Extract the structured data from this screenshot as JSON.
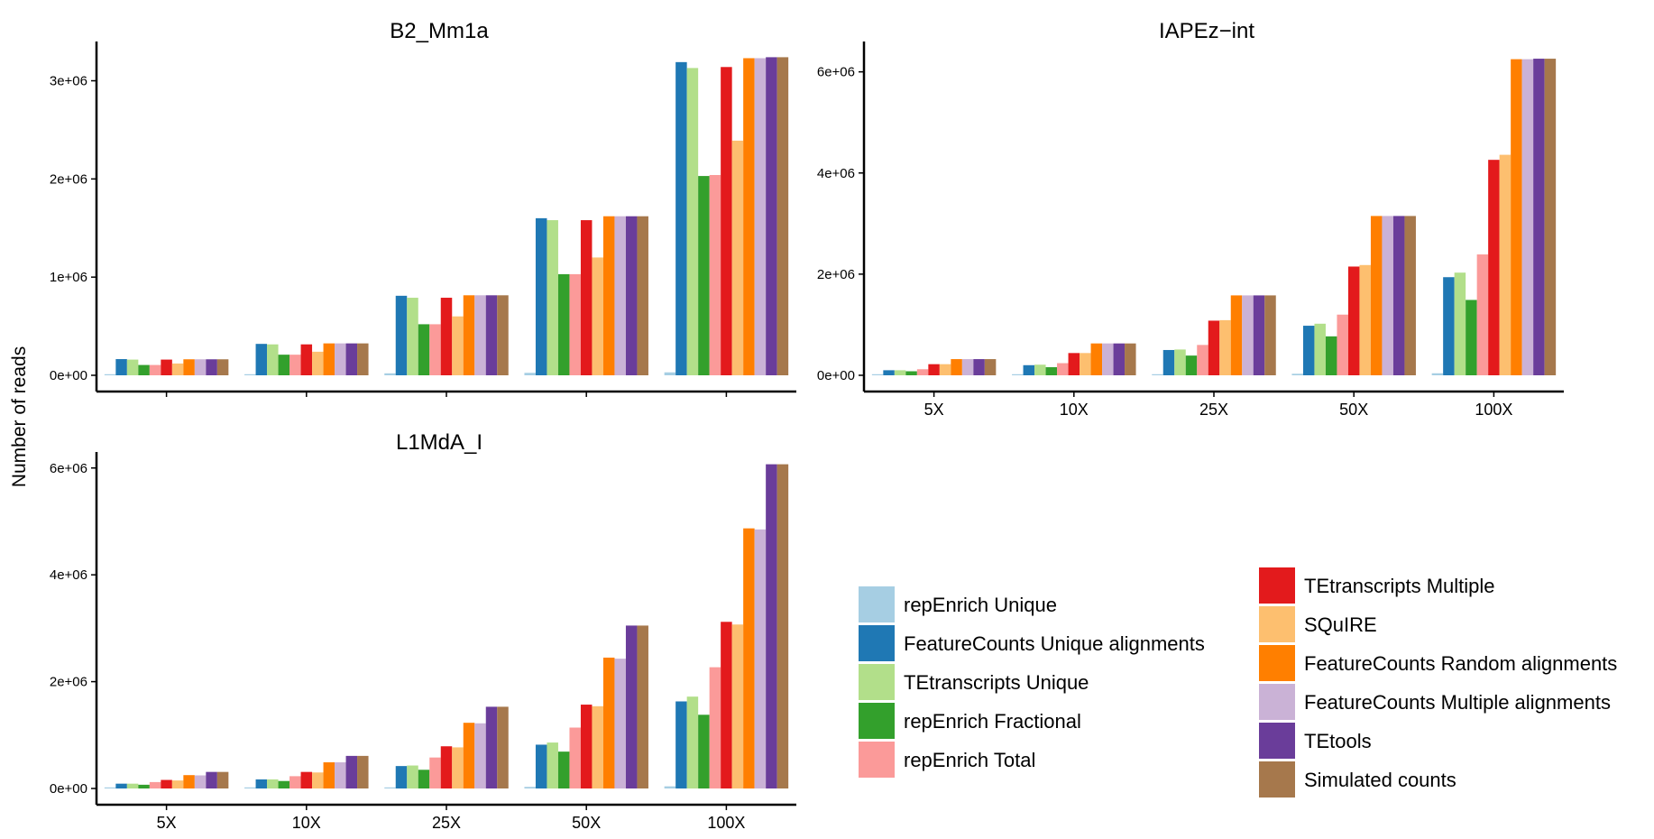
{
  "figure": {
    "ylabel": "Number of reads"
  },
  "series_colors": [
    "#a6cee3",
    "#1f78b4",
    "#b2df8a",
    "#33a02c",
    "#fb9a99",
    "#e31a1c",
    "#fdbf6f",
    "#ff7f00",
    "#cab2d6",
    "#6a3d9a",
    "#a6784c"
  ],
  "legend": {
    "column1": [
      "repEnrich Unique",
      "FeatureCounts Unique alignments",
      "TEtranscripts Unique",
      "repEnrich Fractional",
      "repEnrich Total"
    ],
    "column2": [
      "TEtranscripts Multiple",
      "SQuIRE",
      "FeatureCounts Random alignments",
      "FeatureCounts Multiple alignments",
      "TEtools",
      "Simulated counts"
    ]
  },
  "chart_data": [
    {
      "type": "bar",
      "title": "B2_Mm1a",
      "categories": [
        "5X",
        "10X",
        "25X",
        "50X",
        "100X"
      ],
      "show_category_labels": false,
      "ylim": [
        0,
        3400000
      ],
      "yticks": [
        0,
        1000000,
        2000000,
        3000000
      ],
      "ytick_labels": [
        "0e+00",
        "1e+06",
        "2e+06",
        "3e+06"
      ],
      "series": [
        {
          "name": "repEnrich Unique",
          "values": [
            5000,
            10000,
            20000,
            25000,
            30000
          ]
        },
        {
          "name": "FeatureCounts Unique alignments",
          "values": [
            165000,
            320000,
            810000,
            1600000,
            3190000
          ]
        },
        {
          "name": "TEtranscripts Unique",
          "values": [
            160000,
            315000,
            790000,
            1580000,
            3130000
          ]
        },
        {
          "name": "repEnrich Fractional",
          "values": [
            105000,
            210000,
            520000,
            1030000,
            2030000
          ]
        },
        {
          "name": "repEnrich Total",
          "values": [
            105000,
            210000,
            520000,
            1030000,
            2040000
          ]
        },
        {
          "name": "TEtranscripts Multiple",
          "values": [
            160000,
            315000,
            790000,
            1580000,
            3140000
          ]
        },
        {
          "name": "SQuIRE",
          "values": [
            120000,
            240000,
            600000,
            1200000,
            2390000
          ]
        },
        {
          "name": "FeatureCounts Random alignments",
          "values": [
            163000,
            325000,
            815000,
            1620000,
            3230000
          ]
        },
        {
          "name": "FeatureCounts Multiple alignments",
          "values": [
            163000,
            325000,
            815000,
            1620000,
            3230000
          ]
        },
        {
          "name": "TEtools",
          "values": [
            163000,
            325000,
            815000,
            1620000,
            3240000
          ]
        },
        {
          "name": "Simulated counts",
          "values": [
            163000,
            325000,
            815000,
            1620000,
            3240000
          ]
        }
      ]
    },
    {
      "type": "bar",
      "title": "IAPEz−int",
      "categories": [
        "5X",
        "10X",
        "25X",
        "50X",
        "100X"
      ],
      "show_category_labels": true,
      "ylim": [
        0,
        6600000
      ],
      "yticks": [
        0,
        2000000,
        4000000,
        6000000
      ],
      "ytick_labels": [
        "0e+00",
        "2e+06",
        "4e+06",
        "6e+06"
      ],
      "series": [
        {
          "name": "repEnrich Unique",
          "values": [
            5000,
            10000,
            20000,
            30000,
            40000
          ]
        },
        {
          "name": "FeatureCounts Unique alignments",
          "values": [
            100000,
            200000,
            500000,
            980000,
            1940000
          ]
        },
        {
          "name": "TEtranscripts Unique",
          "values": [
            100000,
            210000,
            510000,
            1020000,
            2030000
          ]
        },
        {
          "name": "repEnrich Fractional",
          "values": [
            80000,
            160000,
            390000,
            770000,
            1490000
          ]
        },
        {
          "name": "repEnrich Total",
          "values": [
            120000,
            240000,
            600000,
            1200000,
            2390000
          ]
        },
        {
          "name": "TEtranscripts Multiple",
          "values": [
            220000,
            440000,
            1080000,
            2150000,
            4260000
          ]
        },
        {
          "name": "SQuIRE",
          "values": [
            220000,
            440000,
            1090000,
            2180000,
            4360000
          ]
        },
        {
          "name": "FeatureCounts Random alignments",
          "values": [
            320000,
            630000,
            1580000,
            3150000,
            6250000
          ]
        },
        {
          "name": "FeatureCounts Multiple alignments",
          "values": [
            320000,
            630000,
            1580000,
            3150000,
            6250000
          ]
        },
        {
          "name": "TEtools",
          "values": [
            320000,
            630000,
            1580000,
            3150000,
            6260000
          ]
        },
        {
          "name": "Simulated counts",
          "values": [
            320000,
            630000,
            1580000,
            3150000,
            6260000
          ]
        }
      ]
    },
    {
      "type": "bar",
      "title": "L1MdA_I",
      "categories": [
        "5X",
        "10X",
        "25X",
        "50X",
        "100X"
      ],
      "show_category_labels": true,
      "ylim": [
        0,
        6300000
      ],
      "yticks": [
        0,
        2000000,
        4000000,
        6000000
      ],
      "ytick_labels": [
        "0e+00",
        "2e+06",
        "4e+06",
        "6e+06"
      ],
      "series": [
        {
          "name": "repEnrich Unique",
          "values": [
            5000,
            10000,
            20000,
            30000,
            40000
          ]
        },
        {
          "name": "FeatureCounts Unique alignments",
          "values": [
            90000,
            170000,
            420000,
            820000,
            1630000
          ]
        },
        {
          "name": "TEtranscripts Unique",
          "values": [
            90000,
            170000,
            430000,
            860000,
            1720000
          ]
        },
        {
          "name": "repEnrich Fractional",
          "values": [
            70000,
            140000,
            350000,
            690000,
            1380000
          ]
        },
        {
          "name": "repEnrich Total",
          "values": [
            120000,
            230000,
            580000,
            1140000,
            2270000
          ]
        },
        {
          "name": "TEtranscripts Multiple",
          "values": [
            160000,
            310000,
            790000,
            1570000,
            3120000
          ]
        },
        {
          "name": "SQuIRE",
          "values": [
            150000,
            300000,
            770000,
            1540000,
            3070000
          ]
        },
        {
          "name": "FeatureCounts Random alignments",
          "values": [
            250000,
            490000,
            1230000,
            2450000,
            4870000
          ]
        },
        {
          "name": "FeatureCounts Multiple alignments",
          "values": [
            245000,
            490000,
            1220000,
            2430000,
            4850000
          ]
        },
        {
          "name": "TEtools",
          "values": [
            310000,
            610000,
            1530000,
            3050000,
            6070000
          ]
        },
        {
          "name": "Simulated counts",
          "values": [
            310000,
            610000,
            1530000,
            3050000,
            6070000
          ]
        }
      ]
    }
  ]
}
